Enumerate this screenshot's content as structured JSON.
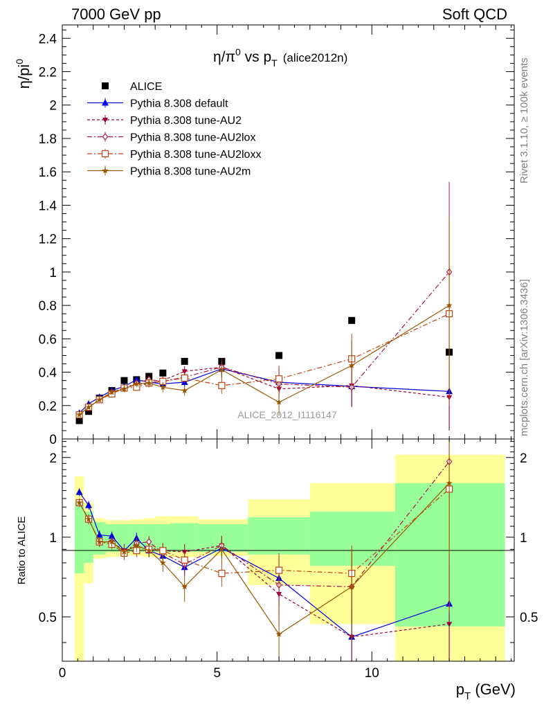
{
  "header": {
    "left": "7000 GeV pp",
    "right": "Soft QCD"
  },
  "side": {
    "rivet": "Rivet 3.1.10, ≥ 100k events",
    "mcplots": "mcplots.cern.ch [arXiv:1306.3436]"
  },
  "colors": {
    "alice": "#000000",
    "default": "#0000dd",
    "au2": "#990033",
    "au2lox": "#aa1144",
    "au2loxx": "#bb4411",
    "au2m": "#995500",
    "band_outer": "#ffff99",
    "band_inner": "#99ff99"
  },
  "chart_data": [
    {
      "type": "scatter",
      "title": "η/π⁰ vs p_T (alice2012n)",
      "title_parts": {
        "main": "η/π",
        "sup": "0",
        "mid": " vs p",
        "sub": "T",
        "tail": "(alice2012n)"
      },
      "ylabel": "η/pi⁰",
      "ylabel_parts": {
        "main": "η/pi",
        "sup": "0"
      },
      "xlim": [
        0,
        14.6
      ],
      "ylim": [
        0,
        2.48
      ],
      "yticks": [
        "0",
        "0.2",
        "0.4",
        "0.6",
        "0.8",
        "1",
        "1.2",
        "1.4",
        "1.6",
        "1.8",
        "2",
        "2.2",
        "2.4"
      ],
      "annotation": "ALICE_2012_I1116147",
      "legend": [
        {
          "key": "alice",
          "label": "ALICE"
        },
        {
          "key": "default",
          "label": "Pythia 8.308 default"
        },
        {
          "key": "au2",
          "label": "Pythia 8.308 tune-AU2"
        },
        {
          "key": "au2lox",
          "label": "Pythia 8.308 tune-AU2lox"
        },
        {
          "key": "au2loxx",
          "label": "Pythia 8.308 tune-AU2loxx"
        },
        {
          "key": "au2m",
          "label": "Pythia 8.308 tune-AU2m"
        }
      ],
      "series": [
        {
          "key": "alice",
          "name": "ALICE",
          "marker": "square",
          "style": "none",
          "x": [
            0.55,
            0.85,
            1.2,
            1.6,
            2.0,
            2.4,
            2.8,
            3.25,
            3.95,
            5.15,
            7.0,
            9.35,
            12.5
          ],
          "y": [
            0.11,
            0.165,
            0.245,
            0.29,
            0.35,
            0.355,
            0.375,
            0.395,
            0.465,
            0.465,
            0.5,
            0.71,
            0.52
          ],
          "err": [
            0.01,
            0.01,
            0.01,
            0.01,
            0.01,
            0.01,
            0.01,
            0.01,
            0.01,
            0.01,
            0.01,
            0.01,
            0.01
          ]
        },
        {
          "key": "default",
          "name": "Pythia 8.308 default",
          "marker": "triangle",
          "style": "solid",
          "x": [
            0.55,
            0.85,
            1.2,
            1.6,
            2.0,
            2.4,
            2.8,
            3.25,
            3.95,
            5.15,
            7.0,
            9.35,
            12.5
          ],
          "y": [
            0.155,
            0.21,
            0.25,
            0.29,
            0.315,
            0.355,
            0.34,
            0.33,
            0.34,
            0.42,
            0.34,
            0.315,
            0.285
          ],
          "err": [
            0.01,
            0.012,
            0.012,
            0.015,
            0.02,
            0.02,
            0.025,
            0.03,
            0.03,
            0.05,
            0.08,
            0.12,
            0.23
          ]
        },
        {
          "key": "au2",
          "name": "Pythia 8.308 tune-AU2",
          "marker": "triangle-down",
          "style": "dashed",
          "x": [
            0.55,
            0.85,
            1.2,
            1.6,
            2.0,
            2.4,
            2.8,
            3.25,
            3.95,
            5.15,
            7.0,
            9.35,
            12.5
          ],
          "y": [
            0.145,
            0.19,
            0.235,
            0.275,
            0.305,
            0.325,
            0.335,
            0.35,
            0.405,
            0.43,
            0.3,
            0.32,
            0.25
          ],
          "err": [
            0.01,
            0.012,
            0.012,
            0.015,
            0.02,
            0.02,
            0.025,
            0.03,
            0.03,
            0.05,
            0.08,
            0.12,
            0.2
          ]
        },
        {
          "key": "au2lox",
          "name": "Pythia 8.308 tune-AU2lox",
          "marker": "diamond",
          "style": "dashdot",
          "x": [
            0.55,
            0.85,
            1.2,
            1.6,
            2.0,
            2.4,
            2.8,
            3.25,
            3.95,
            5.15,
            7.0,
            9.35,
            12.5
          ],
          "y": [
            0.145,
            0.19,
            0.235,
            0.28,
            0.305,
            0.335,
            0.355,
            0.345,
            0.37,
            0.43,
            0.33,
            0.31,
            1.0
          ],
          "err": [
            0.01,
            0.012,
            0.012,
            0.015,
            0.02,
            0.02,
            0.025,
            0.03,
            0.03,
            0.05,
            0.08,
            0.12,
            0.54
          ]
        },
        {
          "key": "au2loxx",
          "name": "Pythia 8.308 tune-AU2loxx",
          "marker": "square-open",
          "style": "dashdot",
          "x": [
            0.55,
            0.85,
            1.2,
            1.6,
            2.0,
            2.4,
            2.8,
            3.25,
            3.95,
            5.15,
            7.0,
            9.35,
            12.5
          ],
          "y": [
            0.145,
            0.19,
            0.235,
            0.27,
            0.305,
            0.31,
            0.335,
            0.345,
            0.365,
            0.32,
            0.36,
            0.48,
            0.75
          ],
          "err": [
            0.01,
            0.012,
            0.012,
            0.015,
            0.02,
            0.02,
            0.025,
            0.03,
            0.03,
            0.05,
            0.08,
            0.15,
            0.55
          ]
        },
        {
          "key": "au2m",
          "name": "Pythia 8.308 tune-AU2m",
          "marker": "star",
          "style": "solid",
          "x": [
            0.55,
            0.85,
            1.2,
            1.6,
            2.0,
            2.4,
            2.8,
            3.25,
            3.95,
            5.15,
            7.0,
            9.35,
            12.5
          ],
          "y": [
            0.145,
            0.19,
            0.235,
            0.28,
            0.3,
            0.33,
            0.335,
            0.31,
            0.29,
            0.415,
            0.22,
            0.44,
            0.8
          ],
          "err": [
            0.01,
            0.012,
            0.012,
            0.015,
            0.02,
            0.02,
            0.025,
            0.03,
            0.03,
            0.05,
            0.08,
            0.15,
            0.54
          ]
        }
      ]
    },
    {
      "type": "scatter",
      "ylabel": "Ratio to ALICE",
      "xlabel": "p_T (GeV)",
      "xlabel_parts": {
        "main": "p",
        "sub": "T",
        "tail": " (GeV)"
      },
      "xlim": [
        0,
        14.6
      ],
      "xticks": [
        "0",
        "5",
        "10"
      ],
      "ylog": true,
      "ylim": [
        0.34,
        2.35
      ],
      "yticks": [
        "0.5",
        "1",
        "2"
      ],
      "bands": [
        {
          "x0": 0.4,
          "x1": 0.7,
          "inner": [
            0.73,
            1.36
          ],
          "outer": [
            0.3,
            1.7
          ]
        },
        {
          "x0": 0.7,
          "x1": 1.0,
          "inner": [
            0.8,
            1.25
          ],
          "outer": [
            0.67,
            1.35
          ]
        },
        {
          "x0": 1.0,
          "x1": 1.4,
          "inner": [
            0.86,
            1.14
          ],
          "outer": [
            0.83,
            1.18
          ]
        },
        {
          "x0": 1.4,
          "x1": 1.8,
          "inner": [
            0.88,
            1.12
          ],
          "outer": [
            0.84,
            1.16
          ]
        },
        {
          "x0": 1.8,
          "x1": 2.2,
          "inner": [
            0.88,
            1.12
          ],
          "outer": [
            0.85,
            1.16
          ]
        },
        {
          "x0": 2.2,
          "x1": 2.6,
          "inner": [
            0.88,
            1.12
          ],
          "outer": [
            0.85,
            1.17
          ]
        },
        {
          "x0": 2.6,
          "x1": 3.0,
          "inner": [
            0.88,
            1.12
          ],
          "outer": [
            0.84,
            1.18
          ]
        },
        {
          "x0": 3.0,
          "x1": 3.5,
          "inner": [
            0.88,
            1.12
          ],
          "outer": [
            0.84,
            1.2
          ]
        },
        {
          "x0": 3.5,
          "x1": 4.4,
          "inner": [
            0.88,
            1.13
          ],
          "outer": [
            0.84,
            1.2
          ]
        },
        {
          "x0": 4.4,
          "x1": 6.0,
          "inner": [
            0.88,
            1.12
          ],
          "outer": [
            0.85,
            1.17
          ]
        },
        {
          "x0": 6.0,
          "x1": 8.0,
          "inner": [
            0.86,
            1.19
          ],
          "outer": [
            0.66,
            1.39
          ]
        },
        {
          "x0": 8.0,
          "x1": 10.75,
          "inner": [
            0.78,
            1.25
          ],
          "outer": [
            0.47,
            1.6
          ]
        },
        {
          "x0": 10.75,
          "x1": 14.3,
          "inner": [
            0.46,
            1.6
          ],
          "outer": [
            0.3,
            2.05
          ]
        }
      ],
      "series": [
        {
          "key": "default",
          "x": [
            0.55,
            0.85,
            1.2,
            1.6,
            2.0,
            2.4,
            2.8,
            3.25,
            3.95,
            5.15,
            7.0,
            9.35,
            12.5
          ],
          "y": [
            1.48,
            1.32,
            1.02,
            1.01,
            0.89,
            0.99,
            0.89,
            0.85,
            0.77,
            0.91,
            0.7,
            0.42,
            0.56
          ],
          "err": [
            0.05,
            0.05,
            0.04,
            0.04,
            0.05,
            0.05,
            0.05,
            0.06,
            0.06,
            0.08,
            0.15,
            0.2,
            0.3
          ]
        },
        {
          "key": "au2",
          "x": [
            0.55,
            0.85,
            1.2,
            1.6,
            2.0,
            2.4,
            2.8,
            3.25,
            3.95,
            5.15,
            7.0,
            9.35,
            12.5
          ],
          "y": [
            1.35,
            1.17,
            0.96,
            0.96,
            0.89,
            0.92,
            0.91,
            0.89,
            0.88,
            0.93,
            0.61,
            0.42,
            0.47
          ],
          "err": [
            0.05,
            0.05,
            0.04,
            0.04,
            0.05,
            0.05,
            0.05,
            0.06,
            0.06,
            0.08,
            0.15,
            0.2,
            0.3
          ]
        },
        {
          "key": "au2lox",
          "x": [
            0.55,
            0.85,
            1.2,
            1.6,
            2.0,
            2.4,
            2.8,
            3.25,
            3.95,
            5.15,
            7.0,
            9.35,
            12.5
          ],
          "y": [
            1.35,
            1.17,
            0.96,
            0.96,
            0.88,
            0.95,
            0.96,
            0.87,
            0.79,
            0.93,
            0.66,
            0.65,
            1.93
          ],
          "err": [
            0.05,
            0.05,
            0.04,
            0.04,
            0.05,
            0.05,
            0.05,
            0.06,
            0.06,
            0.08,
            0.15,
            0.25,
            1.0
          ]
        },
        {
          "key": "au2loxx",
          "x": [
            0.55,
            0.85,
            1.2,
            1.6,
            2.0,
            2.4,
            2.8,
            3.25,
            3.95,
            5.15,
            7.0,
            9.35,
            12.5
          ],
          "y": [
            1.35,
            1.17,
            0.96,
            0.94,
            0.87,
            0.89,
            0.9,
            0.89,
            0.82,
            0.73,
            0.75,
            0.73,
            1.52
          ],
          "err": [
            0.05,
            0.05,
            0.04,
            0.04,
            0.05,
            0.05,
            0.05,
            0.06,
            0.06,
            0.08,
            0.12,
            0.2,
            1.0
          ]
        },
        {
          "key": "au2m",
          "x": [
            0.55,
            0.85,
            1.2,
            1.6,
            2.0,
            2.4,
            2.8,
            3.25,
            3.95,
            5.15,
            7.0,
            9.35,
            12.5
          ],
          "y": [
            1.35,
            1.17,
            0.96,
            0.96,
            0.88,
            0.93,
            0.89,
            0.8,
            0.65,
            0.9,
            0.43,
            0.65,
            1.6
          ],
          "err": [
            0.05,
            0.05,
            0.04,
            0.04,
            0.05,
            0.05,
            0.05,
            0.06,
            0.08,
            0.1,
            0.15,
            0.25,
            1.0
          ]
        }
      ]
    }
  ]
}
